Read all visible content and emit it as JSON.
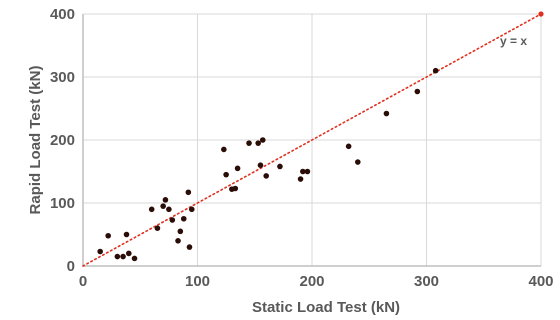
{
  "chart_data": {
    "type": "scatter",
    "title": "",
    "xlabel": "Static Load Test (kN)",
    "ylabel": "Rapid Load Test (kN)",
    "xlim": [
      0,
      400
    ],
    "ylim": [
      0,
      400
    ],
    "xticks": [
      0,
      100,
      200,
      300,
      400
    ],
    "yticks": [
      0,
      100,
      200,
      300,
      400
    ],
    "grid": true,
    "annotation": "y = x",
    "reference_line": {
      "from": [
        0,
        0
      ],
      "to": [
        400,
        400
      ],
      "color": "#e03020",
      "style": "dotted"
    },
    "colors": {
      "point": "#2a0d06",
      "axis": "#bfbfbf",
      "grid": "#d9d9d9",
      "text": "#595959"
    },
    "x": [
      15,
      22,
      30,
      35,
      38,
      40,
      45,
      60,
      65,
      70,
      72,
      75,
      78,
      83,
      85,
      88,
      92,
      93,
      95,
      123,
      125,
      130,
      133,
      135,
      145,
      153,
      155,
      157,
      160,
      172,
      190,
      192,
      196,
      232,
      240,
      265,
      292,
      308,
      400
    ],
    "y": [
      23,
      48,
      15,
      15,
      50,
      20,
      12,
      90,
      60,
      95,
      105,
      90,
      73,
      40,
      55,
      75,
      117,
      30,
      90,
      185,
      145,
      122,
      123,
      155,
      195,
      195,
      160,
      200,
      143,
      158,
      138,
      150,
      150,
      190,
      165,
      242,
      277,
      310,
      400
    ]
  }
}
